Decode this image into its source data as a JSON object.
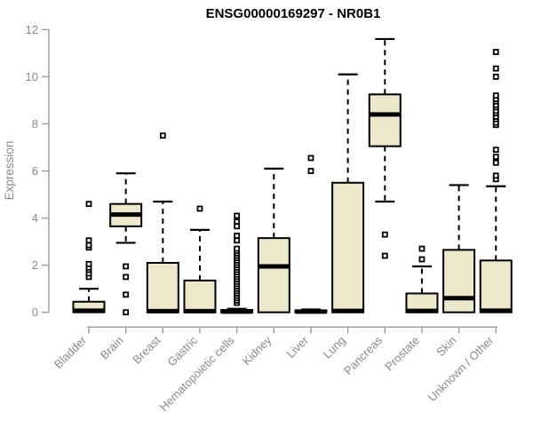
{
  "title": "ENSG00000169297 - NR0B1",
  "chart_data": {
    "type": "boxplot",
    "title": "ENSG00000169297 - NR0B1",
    "xlabel": "",
    "ylabel": "Expression",
    "ylim": [
      0,
      12
    ],
    "yticks": [
      0,
      2,
      4,
      6,
      8,
      10,
      12
    ],
    "grid": false,
    "legend": "none",
    "categories": [
      "Bladder",
      "Brain",
      "Breast",
      "Gastric",
      "Hematopoietic cells",
      "Kidney",
      "Liver",
      "Lung",
      "Pancreas",
      "Prostate",
      "Skin",
      "Unknown / Other"
    ],
    "series": [
      {
        "category": "Bladder",
        "whisker_low": 0,
        "q1": 0,
        "median": 0.07,
        "q3": 0.45,
        "whisker_high": 1.0,
        "outliers": [
          1.5,
          1.65,
          1.8,
          1.9,
          2.05,
          2.75,
          2.85,
          3.05,
          4.6
        ]
      },
      {
        "category": "Brain",
        "whisker_low": 2.95,
        "q1": 3.65,
        "median": 4.15,
        "q3": 4.6,
        "whisker_high": 5.9,
        "outliers": [
          0,
          0.75,
          1.5,
          1.95
        ]
      },
      {
        "category": "Breast",
        "whisker_low": 0,
        "q1": 0,
        "median": 0.05,
        "q3": 2.1,
        "whisker_high": 4.7,
        "outliers": [
          7.5
        ]
      },
      {
        "category": "Gastric",
        "whisker_low": 0,
        "q1": 0,
        "median": 0.05,
        "q3": 1.35,
        "whisker_high": 3.5,
        "outliers": [
          4.4
        ]
      },
      {
        "category": "Hematopoietic cells",
        "whisker_low": 0,
        "q1": 0,
        "median": 0.03,
        "q3": 0.1,
        "whisker_high": 0.15,
        "outliers": [
          0.4,
          0.5,
          0.6,
          0.7,
          0.8,
          0.9,
          1.0,
          1.1,
          1.2,
          1.3,
          1.4,
          1.5,
          1.6,
          1.7,
          1.8,
          1.9,
          2.0,
          2.1,
          2.2,
          2.3,
          2.4,
          2.5,
          2.6,
          2.7,
          3.05,
          3.25,
          3.65,
          3.85,
          4.1
        ]
      },
      {
        "category": "Kidney",
        "whisker_low": 0,
        "q1": 0,
        "median": 1.95,
        "q3": 3.15,
        "whisker_high": 6.1,
        "outliers": []
      },
      {
        "category": "Liver",
        "whisker_low": 0,
        "q1": 0,
        "median": 0.03,
        "q3": 0.08,
        "whisker_high": 0.12,
        "outliers": [
          6.0,
          6.55
        ]
      },
      {
        "category": "Lung",
        "whisker_low": 0,
        "q1": 0,
        "median": 0.06,
        "q3": 5.5,
        "whisker_high": 10.1,
        "outliers": []
      },
      {
        "category": "Pancreas",
        "whisker_low": 4.7,
        "q1": 7.05,
        "median": 8.4,
        "q3": 9.25,
        "whisker_high": 11.6,
        "outliers": [
          2.4,
          3.3
        ]
      },
      {
        "category": "Prostate",
        "whisker_low": 0,
        "q1": 0,
        "median": 0.06,
        "q3": 0.8,
        "whisker_high": 1.95,
        "outliers": [
          2.25,
          2.7
        ]
      },
      {
        "category": "Skin",
        "whisker_low": 0,
        "q1": 0,
        "median": 0.6,
        "q3": 2.65,
        "whisker_high": 5.4,
        "outliers": []
      },
      {
        "category": "Unknown / Other",
        "whisker_low": 0,
        "q1": 0,
        "median": 0.07,
        "q3": 2.2,
        "whisker_high": 5.35,
        "outliers": [
          5.65,
          5.8,
          6.35,
          6.6,
          6.9,
          7.95,
          8.05,
          8.2,
          8.3,
          8.45,
          8.55,
          8.7,
          8.8,
          8.95,
          9.05,
          9.2,
          10.0,
          10.35,
          11.05
        ]
      }
    ],
    "colors": {
      "box_fill": "#EDE8CC",
      "box_stroke": "#000000",
      "median": "#000000",
      "whisker": "#000000",
      "outlier": "#000000",
      "axis_line": "#9a9a9a",
      "tick_label": "#8a8a8a",
      "title": "#000000",
      "background": "#ffffff"
    }
  }
}
